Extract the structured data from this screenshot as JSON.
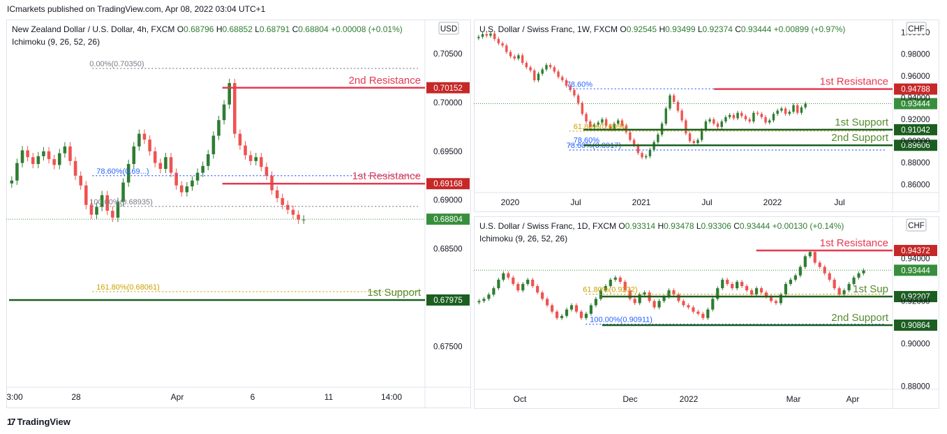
{
  "header": {
    "publisher": "ICmarkets published on TradingView.com, Apr 08, 2022 03:04 UTC+1"
  },
  "footer": {
    "brand": "TradingView",
    "brand_mark": "17"
  },
  "colors": {
    "up": "#26a69a",
    "up_dark": "#2e7d32",
    "down": "#ef5350",
    "resistance": "#e53950",
    "resistance_dark": "#c62828",
    "support": "#1b5e20",
    "support_label": "#558b2f",
    "fib_gray": "#787b86",
    "fib_blue": "#2962ff",
    "fib_gold": "#c9a100",
    "channel": "#1b5e20",
    "last_price": "#388e3c"
  },
  "chart_data": [
    {
      "id": "nzdusd",
      "type": "candlestick",
      "symbol_line": "New Zealand Dollar / U.S. Dollar, 4h, FXCM",
      "ohlc": {
        "O": "0.68796",
        "H": "0.68852",
        "L": "0.68791",
        "C": "0.68804",
        "chg": "+0.00008 (+0.01%)"
      },
      "indicator": "Ichimoku (9, 26, 52, 26)",
      "currency": "USD",
      "y_ticks": [
        "0.70500",
        "0.70000",
        "0.69500",
        "0.69000",
        "0.68500",
        "0.67500"
      ],
      "y_tick_values": [
        0.705,
        0.7,
        0.695,
        0.69,
        0.685,
        0.675
      ],
      "ylim": [
        0.6708,
        0.7078
      ],
      "x_ticks": [
        "3:00",
        "28",
        "Apr",
        "6",
        "11",
        "14:00"
      ],
      "levels": [
        {
          "name": "2nd Resistance",
          "value": 0.70152,
          "tag": "0.70152",
          "kind": "resistance"
        },
        {
          "name": "1st Resistance",
          "value": 0.69168,
          "tag": "0.69168",
          "kind": "resistance"
        },
        {
          "name": "1st Support",
          "value": 0.67975,
          "tag": "0.67975",
          "kind": "support"
        }
      ],
      "last_price": {
        "value": 0.68804,
        "tag": "0.68804"
      },
      "fibs": [
        {
          "label": "0.00%(0.70350)",
          "value": 0.7035,
          "color": "gray"
        },
        {
          "label": "78.60%(0.69...)",
          "value": 0.6925,
          "color": "blue"
        },
        {
          "label": "100.00%(0.68935)",
          "value": 0.68935,
          "color": "gray"
        },
        {
          "label": "161.80%(0.68061)",
          "value": 0.68061,
          "color": "gold"
        }
      ],
      "candles": [
        0.692,
        0.6938,
        0.6951,
        0.6944,
        0.6937,
        0.6945,
        0.695,
        0.6942,
        0.6936,
        0.6948,
        0.6955,
        0.694,
        0.6925,
        0.6915,
        0.6895,
        0.6885,
        0.6893,
        0.6905,
        0.6889,
        0.6882,
        0.6898,
        0.6918,
        0.6937,
        0.6955,
        0.6968,
        0.6962,
        0.695,
        0.6938,
        0.6932,
        0.6944,
        0.6928,
        0.6915,
        0.6908,
        0.6914,
        0.692,
        0.6928,
        0.6935,
        0.6947,
        0.6966,
        0.6982,
        0.6998,
        0.702,
        0.6968,
        0.6956,
        0.6946,
        0.694,
        0.6944,
        0.6934,
        0.6925,
        0.691,
        0.6902,
        0.6895,
        0.689,
        0.6885,
        0.688,
        0.688
      ]
    },
    {
      "id": "usdchf_1w",
      "type": "candlestick",
      "symbol_line": "U.S. Dollar / Swiss Franc, 1W, FXCM",
      "ohlc": {
        "O": "0.92545",
        "H": "0.93499",
        "L": "0.92374",
        "C": "0.93444",
        "chg": "+0.00899 (+0.97%)"
      },
      "currency": "CHF",
      "y_ticks": [
        "1.00000",
        "0.98000",
        "0.96000",
        "0.94000",
        "0.92000",
        "0.90000",
        "0.88000",
        "0.86000"
      ],
      "y_tick_values": [
        1.0,
        0.98,
        0.96,
        0.94,
        0.92,
        0.9,
        0.88,
        0.86
      ],
      "ylim": [
        0.8525,
        1.0055
      ],
      "x_ticks": [
        "2020",
        "Jul",
        "2021",
        "Jul",
        "2022",
        "Jul"
      ],
      "levels": [
        {
          "name": "1st Resistance",
          "value": 0.94788,
          "tag": "0.94788",
          "kind": "resistance"
        },
        {
          "name": "1st Support",
          "value": 0.91042,
          "tag": "0.91042",
          "kind": "support"
        },
        {
          "name": "2nd Support",
          "value": 0.89606,
          "tag": "0.89606",
          "kind": "support"
        }
      ],
      "last_price": {
        "value": 0.93444,
        "tag": "0.93444"
      },
      "fibs": [
        {
          "label": "78.60%",
          "value": 0.9481,
          "color": "blue"
        },
        {
          "label": "61.80%(0.9091)",
          "value": 0.9091,
          "color": "gold"
        },
        {
          "label": "78.60%(0.8917)",
          "value": 0.8917,
          "color": "blue"
        },
        {
          "label": "78.60%",
          "value": 0.8965,
          "color": "blue"
        }
      ],
      "candles": [
        0.996,
        0.9985,
        0.997,
        0.999,
        0.994,
        0.99,
        0.988,
        0.982,
        0.978,
        0.976,
        0.979,
        0.972,
        0.968,
        0.965,
        0.956,
        0.962,
        0.966,
        0.97,
        0.968,
        0.964,
        0.959,
        0.956,
        0.951,
        0.947,
        0.942,
        0.935,
        0.925,
        0.918,
        0.913,
        0.915,
        0.917,
        0.92,
        0.914,
        0.911,
        0.916,
        0.919,
        0.914,
        0.908,
        0.901,
        0.896,
        0.889,
        0.885,
        0.886,
        0.892,
        0.899,
        0.906,
        0.916,
        0.93,
        0.942,
        0.936,
        0.928,
        0.919,
        0.907,
        0.9,
        0.898,
        0.901,
        0.91,
        0.918,
        0.92,
        0.916,
        0.913,
        0.918,
        0.922,
        0.924,
        0.921,
        0.926,
        0.923,
        0.92,
        0.918,
        0.926,
        0.925,
        0.922,
        0.917,
        0.919,
        0.925,
        0.928,
        0.93,
        0.925,
        0.927,
        0.933,
        0.926,
        0.931,
        0.9344
      ]
    },
    {
      "id": "usdchf_1d",
      "type": "candlestick",
      "symbol_line": "U.S. Dollar / Swiss Franc, 1D, FXCM",
      "ohlc": {
        "O": "0.93314",
        "H": "0.93478",
        "L": "0.93306",
        "C": "0.93444",
        "chg": "+0.00130 (+0.14%)"
      },
      "indicator": "Ichimoku (9, 26, 52, 26)",
      "currency": "CHF",
      "y_ticks": [
        "0.94000",
        "0.92000",
        "0.90000",
        "0.88000"
      ],
      "y_tick_values": [
        0.94,
        0.92,
        0.9,
        0.88
      ],
      "ylim": [
        0.8785,
        0.9565
      ],
      "x_ticks": [
        "Oct",
        "Dec",
        "2022",
        "Mar",
        "Apr"
      ],
      "levels": [
        {
          "name": "1st Resistance",
          "value": 0.94372,
          "tag": "0.94372",
          "kind": "resistance"
        },
        {
          "name": "1st Sup",
          "value": 0.92207,
          "tag": "0.92207",
          "kind": "support"
        },
        {
          "name": "2nd Support",
          "value": 0.90864,
          "tag": "0.90864",
          "kind": "support"
        }
      ],
      "last_price": {
        "value": 0.93444,
        "tag": "0.93444"
      },
      "fibs": [
        {
          "label": "61.80%(0.9232)",
          "value": 0.9232,
          "color": "gold"
        },
        {
          "label": "100.00%(0.90911)",
          "value": 0.90911,
          "color": "blue"
        }
      ],
      "candles": [
        0.92,
        0.921,
        0.923,
        0.926,
        0.93,
        0.933,
        0.931,
        0.928,
        0.925,
        0.928,
        0.93,
        0.927,
        0.924,
        0.921,
        0.918,
        0.915,
        0.912,
        0.913,
        0.916,
        0.918,
        0.915,
        0.912,
        0.914,
        0.918,
        0.921,
        0.925,
        0.927,
        0.93,
        0.931,
        0.929,
        0.925,
        0.921,
        0.919,
        0.923,
        0.924,
        0.92,
        0.917,
        0.92,
        0.922,
        0.925,
        0.923,
        0.92,
        0.918,
        0.917,
        0.915,
        0.914,
        0.912,
        0.916,
        0.921,
        0.926,
        0.93,
        0.928,
        0.926,
        0.929,
        0.927,
        0.925,
        0.923,
        0.926,
        0.924,
        0.922,
        0.92,
        0.919,
        0.923,
        0.928,
        0.93,
        0.932,
        0.936,
        0.941,
        0.943,
        0.938,
        0.936,
        0.933,
        0.93,
        0.926,
        0.923,
        0.925,
        0.928,
        0.931,
        0.933,
        0.9344
      ]
    }
  ]
}
